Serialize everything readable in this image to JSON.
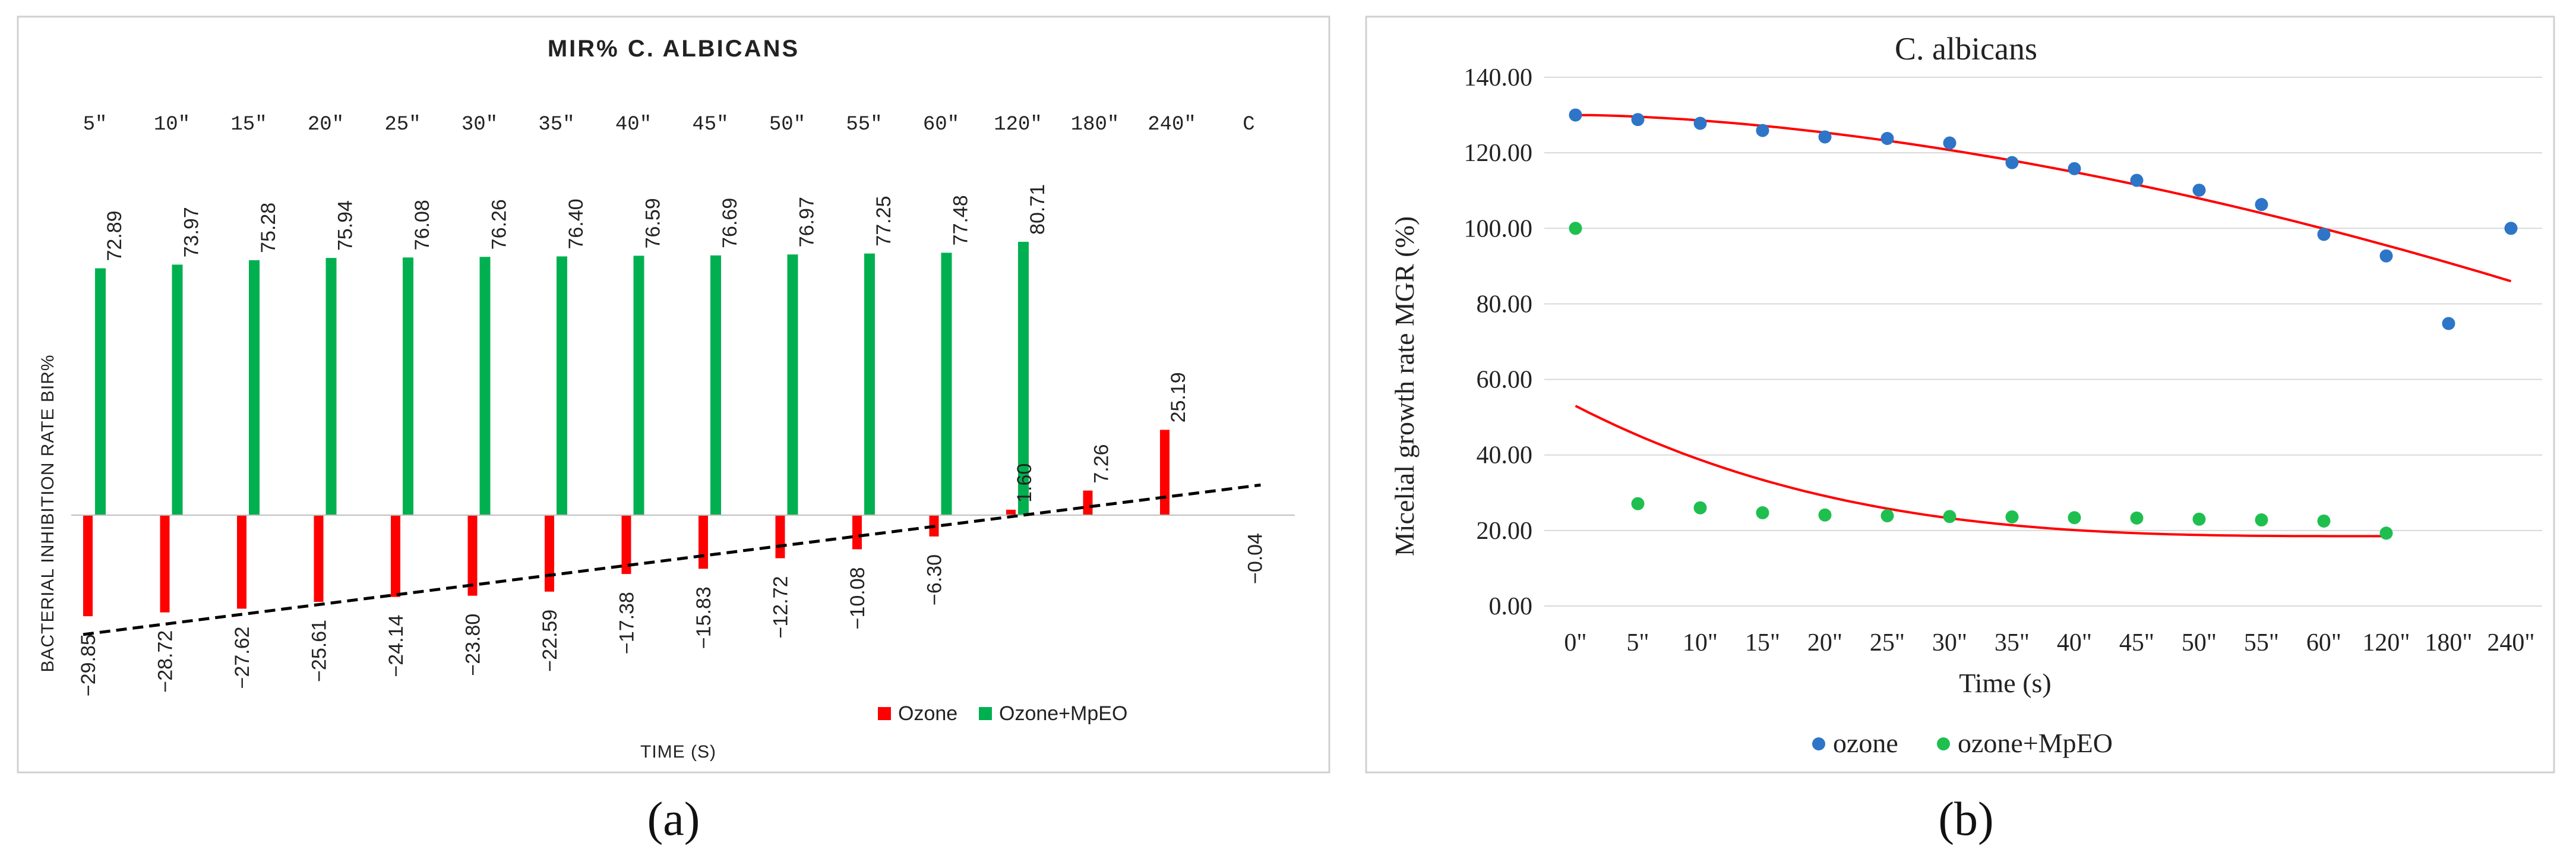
{
  "chart_data": [
    {
      "type": "bar",
      "title": "MIR% C. ALBICANS",
      "categories": [
        "5\"",
        "10\"",
        "15\"",
        "20\"",
        "25\"",
        "30\"",
        "35\"",
        "40\"",
        "45\"",
        "50\"",
        "55\"",
        "60\"",
        "120\"",
        "180\"",
        "240\"",
        "C"
      ],
      "series": [
        {
          "name": "Ozone",
          "color": "#ff0000",
          "values": [
            -29.85,
            -28.72,
            -27.62,
            -25.61,
            -24.14,
            -23.8,
            -22.59,
            -17.38,
            -15.83,
            -12.72,
            -10.08,
            -6.3,
            1.6,
            7.26,
            25.19,
            -0.04
          ],
          "labels": [
            "−29.85",
            "−28.72",
            "−27.62",
            "−25.61",
            "−24.14",
            "−23.80",
            "−22.59",
            "−17.38",
            "−15.83",
            "−12.72",
            "−10.08",
            "−6.30",
            "1.60",
            "7.26",
            "25.19",
            "−0.04"
          ]
        },
        {
          "name": "Ozone+MpEO",
          "color": "#00b050",
          "values": [
            72.89,
            73.97,
            75.28,
            75.94,
            76.08,
            76.26,
            76.4,
            76.59,
            76.69,
            76.97,
            77.25,
            77.48,
            80.71,
            null,
            null,
            null
          ],
          "labels": [
            "72.89",
            "73.97",
            "75.28",
            "75.94",
            "76.08",
            "76.26",
            "76.40",
            "76.59",
            "76.69",
            "76.97",
            "77.25",
            "77.48",
            "80.71",
            "",
            "",
            ""
          ]
        }
      ],
      "trendline": {
        "series": "Ozone",
        "style": "dashed",
        "color": "#000000"
      },
      "xlabel": "TIME (S)",
      "ylabel": "BACTERIAL INHIBITION RATE BIR%",
      "ylim": [
        -45,
        90
      ],
      "legend": "bottom-right"
    },
    {
      "type": "scatter",
      "title": "C. albicans",
      "categories": [
        "0\"",
        "5\"",
        "10\"",
        "15\"",
        "20\"",
        "25\"",
        "30\"",
        "35\"",
        "40\"",
        "45\"",
        "50\"",
        "55\"",
        "60\"",
        "120\"",
        "180\"",
        "240\""
      ],
      "series": [
        {
          "name": "ozone",
          "color": "#2e75c8",
          "values": [
            130.0,
            128.8,
            127.8,
            125.9,
            124.2,
            123.8,
            122.6,
            117.4,
            115.8,
            112.7,
            110.1,
            106.3,
            98.4,
            92.7,
            74.8,
            100.0
          ]
        },
        {
          "name": "ozone+MpEO",
          "color": "#1fbf4f",
          "values": [
            100.0,
            27.1,
            26.0,
            24.7,
            24.1,
            23.9,
            23.7,
            23.6,
            23.4,
            23.3,
            23.0,
            22.8,
            22.5,
            19.3,
            null,
            null
          ]
        }
      ],
      "trendlines": [
        {
          "series": "ozone",
          "color": "#ff0000",
          "from": "0\"",
          "to": "240\"",
          "values_at_ends": [
            130.0,
            86.0
          ]
        },
        {
          "series": "ozone+MpEO",
          "color": "#ff0000",
          "from": "0\"",
          "to": "120\"",
          "values_at_ends": [
            53.0,
            18.5
          ]
        }
      ],
      "xlabel": "Time (s)",
      "ylabel": "Micelial growth rate MGR (%)",
      "yticks": [
        "0.00",
        "20.00",
        "40.00",
        "60.00",
        "80.00",
        "100.00",
        "120.00",
        "140.00"
      ],
      "ylim": [
        0,
        140
      ],
      "legend": "bottom"
    }
  ],
  "panels": {
    "a": "(a)",
    "b": "(b)"
  }
}
